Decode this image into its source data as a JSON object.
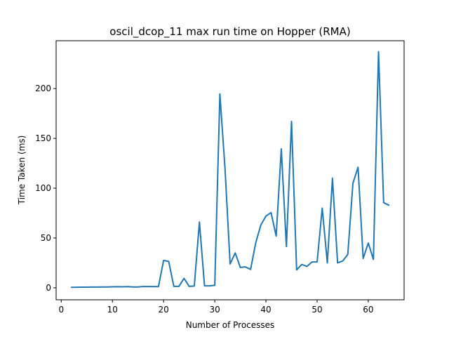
{
  "chart_data": {
    "type": "line",
    "title": "oscil_dcop_11 max run time on Hopper (RMA)",
    "xlabel": "Number of Processes",
    "ylabel": "Time Taken (ms)",
    "xlim": [
      -1,
      67
    ],
    "ylim": [
      -12,
      248
    ],
    "xticks": [
      0,
      10,
      20,
      30,
      40,
      50,
      60
    ],
    "yticks": [
      0,
      50,
      100,
      150,
      200
    ],
    "grid": false,
    "series_color": "#1f77b4",
    "x": [
      2,
      3,
      4,
      5,
      6,
      7,
      8,
      9,
      10,
      11,
      12,
      13,
      14,
      15,
      16,
      17,
      18,
      19,
      20,
      21,
      22,
      23,
      24,
      25,
      26,
      27,
      28,
      29,
      30,
      31,
      32,
      33,
      34,
      35,
      36,
      37,
      38,
      39,
      40,
      41,
      42,
      43,
      44,
      45,
      46,
      47,
      48,
      49,
      50,
      51,
      52,
      53,
      54,
      55,
      56,
      57,
      58,
      59,
      60,
      61,
      62,
      63,
      64
    ],
    "y": [
      0.5,
      0.6,
      0.7,
      0.7,
      0.8,
      0.8,
      0.9,
      0.9,
      1.0,
      1.1,
      1.0,
      1.2,
      0.9,
      0.9,
      1.3,
      1.3,
      1.2,
      1.3,
      27.5,
      26.5,
      1.5,
      1.5,
      9.5,
      1.5,
      1.8,
      66,
      2,
      2,
      2.5,
      194.5,
      120,
      24,
      35,
      20.5,
      21,
      18.5,
      45,
      63,
      72,
      75.5,
      52,
      139.5,
      41.5,
      167,
      18,
      23.5,
      21.5,
      26,
      26,
      80,
      25,
      110,
      25,
      27,
      33.5,
      105,
      121,
      29.5,
      45,
      28.5,
      237,
      85.5,
      83
    ]
  }
}
